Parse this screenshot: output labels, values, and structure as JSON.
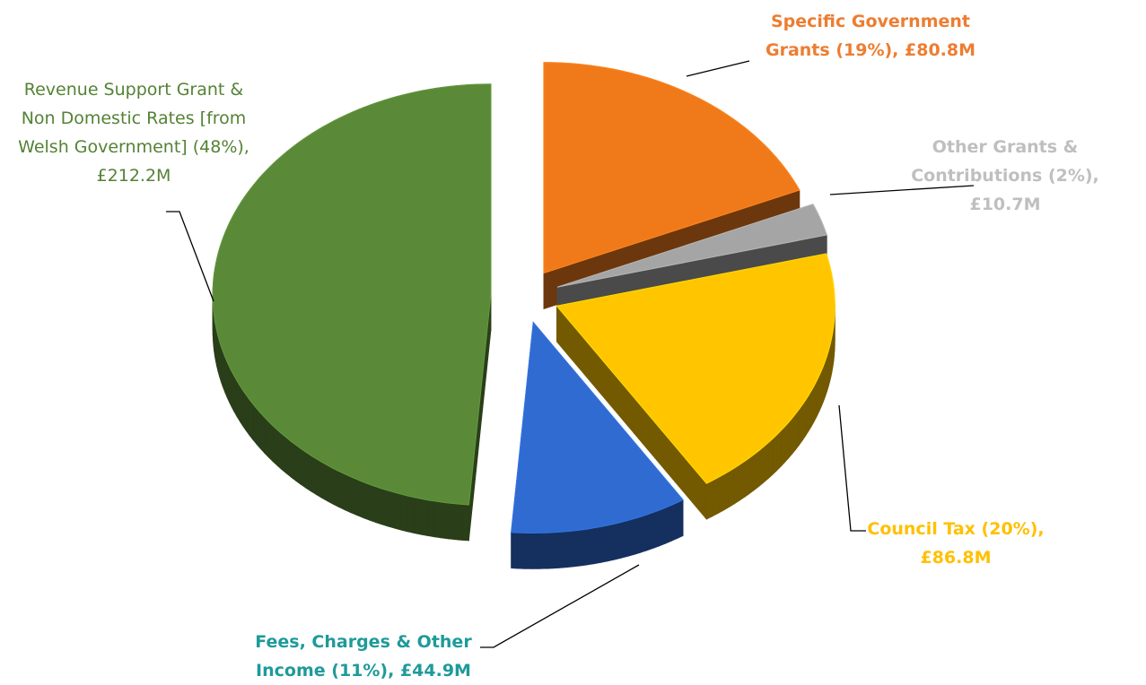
{
  "chart_data": {
    "type": "pie",
    "categories": [
      "Specific Government Grants",
      "Other Grants & Contributions",
      "Council Tax",
      "Fees, Charges & Other Income",
      "Revenue Support Grant & Non Domestic Rates [from Welsh Government]"
    ],
    "values": [
      80.8,
      10.7,
      86.8,
      44.9,
      212.2
    ],
    "value_labels": [
      "(19%), £80.8M",
      "(2%), £10.7M",
      "(20%), £86.8M",
      "(11%), £44.9M",
      "(48%), £212.2M"
    ],
    "colors": [
      "#f07a1a",
      "#a5a5a5",
      "#ffc600",
      "#2f6bd0",
      "#5a8a37"
    ],
    "label_colors": [
      "#ed7d31",
      "#bfbfbf",
      "#ffc000",
      "#1f9a9a",
      "#548235"
    ]
  }
}
